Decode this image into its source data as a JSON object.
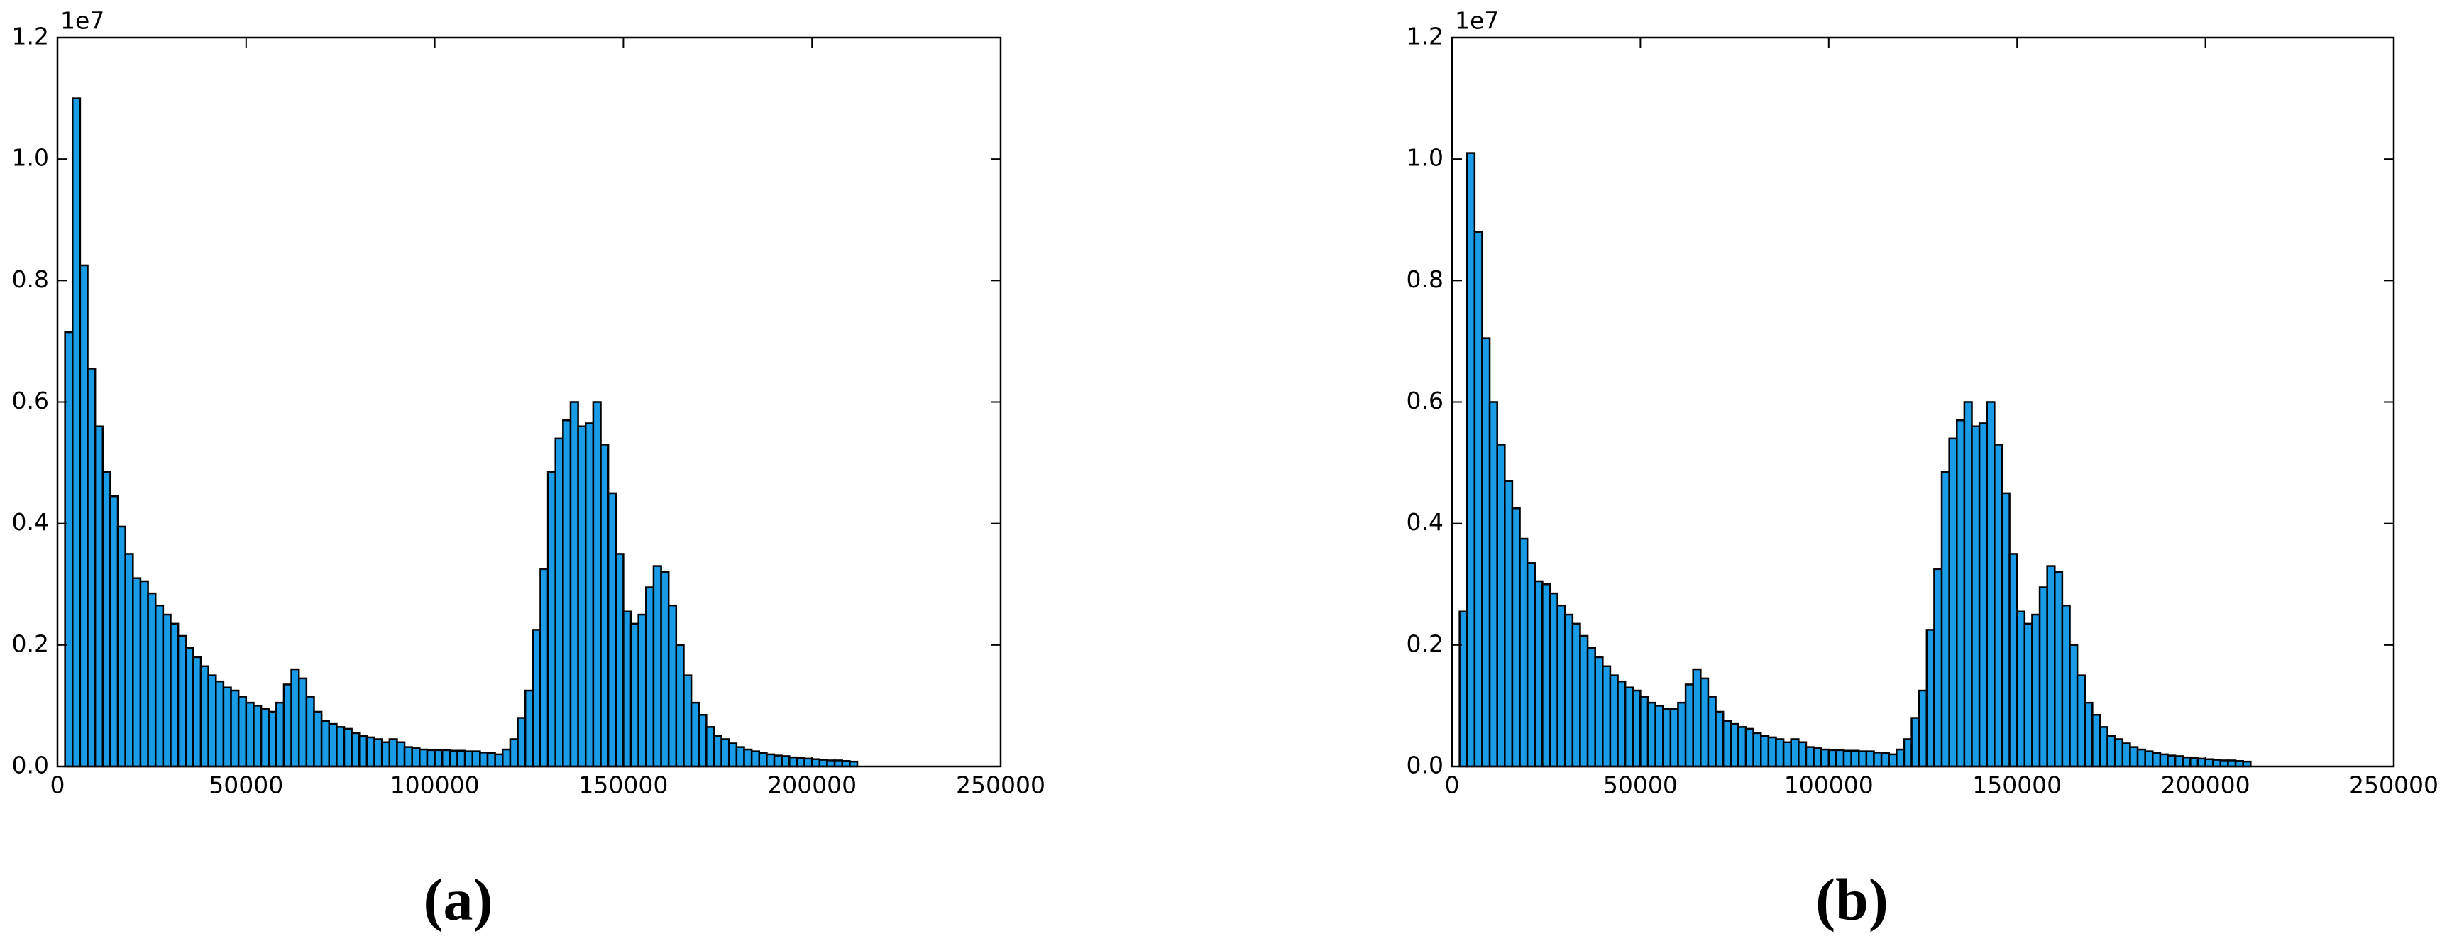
{
  "chart_data": [
    {
      "type": "histogram",
      "caption": "(a)",
      "offset_label": "1e7",
      "color": "#1a9be6",
      "edgecolor": "#000000",
      "bins": [
        2000,
        4000,
        6000,
        8000,
        10000,
        12000,
        14000,
        16000,
        18000,
        20000,
        22000,
        24000,
        26000,
        28000,
        30000,
        32000,
        34000,
        36000,
        38000,
        40000,
        42000,
        44000,
        46000,
        48000,
        50000,
        52000,
        54000,
        56000,
        58000,
        60000,
        62000,
        64000,
        66000,
        68000,
        70000,
        72000,
        74000,
        76000,
        78000,
        80000,
        82000,
        84000,
        86000,
        88000,
        90000,
        92000,
        94000,
        96000,
        98000,
        100000,
        102000,
        104000,
        106000,
        108000,
        110000,
        112000,
        114000,
        116000,
        118000,
        120000,
        122000,
        124000,
        126000,
        128000,
        130000,
        132000,
        134000,
        136000,
        138000,
        140000,
        142000,
        144000,
        146000,
        148000,
        150000,
        152000,
        154000,
        156000,
        158000,
        160000,
        162000,
        164000,
        166000,
        168000,
        170000,
        172000,
        174000,
        176000,
        178000,
        180000,
        182000,
        184000,
        186000,
        188000,
        190000,
        192000,
        194000,
        196000,
        198000,
        200000,
        202000,
        204000,
        206000,
        208000,
        210000,
        212000
      ],
      "values": [
        0.715,
        1.1,
        0.825,
        0.655,
        0.56,
        0.485,
        0.445,
        0.395,
        0.35,
        0.31,
        0.305,
        0.285,
        0.265,
        0.25,
        0.235,
        0.215,
        0.195,
        0.18,
        0.165,
        0.15,
        0.14,
        0.13,
        0.125,
        0.115,
        0.105,
        0.1,
        0.095,
        0.09,
        0.105,
        0.135,
        0.16,
        0.145,
        0.115,
        0.09,
        0.075,
        0.07,
        0.065,
        0.062,
        0.055,
        0.05,
        0.048,
        0.045,
        0.04,
        0.045,
        0.04,
        0.032,
        0.03,
        0.028,
        0.027,
        0.027,
        0.027,
        0.026,
        0.026,
        0.025,
        0.025,
        0.023,
        0.022,
        0.02,
        0.028,
        0.045,
        0.08,
        0.125,
        0.225,
        0.325,
        0.485,
        0.54,
        0.57,
        0.6,
        0.56,
        0.565,
        0.6,
        0.53,
        0.45,
        0.35,
        0.255,
        0.235,
        0.25,
        0.295,
        0.33,
        0.32,
        0.265,
        0.2,
        0.15,
        0.105,
        0.085,
        0.065,
        0.05,
        0.045,
        0.038,
        0.032,
        0.028,
        0.025,
        0.022,
        0.02,
        0.018,
        0.017,
        0.015,
        0.014,
        0.013,
        0.012,
        0.011,
        0.01,
        0.01,
        0.009,
        0.008
      ],
      "xlim": [
        0,
        250000
      ],
      "xticks": [
        0,
        50000,
        100000,
        150000,
        200000,
        250000
      ],
      "ylim": [
        0,
        1.2
      ],
      "yticks": [
        {
          "value": 0,
          "label": "0.0"
        },
        0.2,
        0.4,
        0.6,
        0.8,
        {
          "value": 1,
          "label": "1.0"
        },
        1.2
      ]
    },
    {
      "type": "histogram",
      "caption": "(b)",
      "offset_label": "1e7",
      "color": "#1a9be6",
      "edgecolor": "#000000",
      "bins": [
        2000,
        4000,
        6000,
        8000,
        10000,
        12000,
        14000,
        16000,
        18000,
        20000,
        22000,
        24000,
        26000,
        28000,
        30000,
        32000,
        34000,
        36000,
        38000,
        40000,
        42000,
        44000,
        46000,
        48000,
        50000,
        52000,
        54000,
        56000,
        58000,
        60000,
        62000,
        64000,
        66000,
        68000,
        70000,
        72000,
        74000,
        76000,
        78000,
        80000,
        82000,
        84000,
        86000,
        88000,
        90000,
        92000,
        94000,
        96000,
        98000,
        100000,
        102000,
        104000,
        106000,
        108000,
        110000,
        112000,
        114000,
        116000,
        118000,
        120000,
        122000,
        124000,
        126000,
        128000,
        130000,
        132000,
        134000,
        136000,
        138000,
        140000,
        142000,
        144000,
        146000,
        148000,
        150000,
        152000,
        154000,
        156000,
        158000,
        160000,
        162000,
        164000,
        166000,
        168000,
        170000,
        172000,
        174000,
        176000,
        178000,
        180000,
        182000,
        184000,
        186000,
        188000,
        190000,
        192000,
        194000,
        196000,
        198000,
        200000,
        202000,
        204000,
        206000,
        208000,
        210000,
        212000
      ],
      "values": [
        0.255,
        1.01,
        0.88,
        0.705,
        0.6,
        0.53,
        0.47,
        0.425,
        0.375,
        0.335,
        0.305,
        0.3,
        0.285,
        0.265,
        0.25,
        0.235,
        0.215,
        0.195,
        0.18,
        0.165,
        0.15,
        0.14,
        0.13,
        0.125,
        0.115,
        0.105,
        0.1,
        0.095,
        0.095,
        0.105,
        0.135,
        0.16,
        0.145,
        0.115,
        0.09,
        0.075,
        0.07,
        0.065,
        0.062,
        0.055,
        0.05,
        0.048,
        0.045,
        0.04,
        0.045,
        0.04,
        0.032,
        0.03,
        0.028,
        0.027,
        0.027,
        0.026,
        0.026,
        0.025,
        0.025,
        0.023,
        0.022,
        0.02,
        0.028,
        0.045,
        0.08,
        0.125,
        0.225,
        0.325,
        0.485,
        0.54,
        0.57,
        0.6,
        0.56,
        0.565,
        0.6,
        0.53,
        0.45,
        0.35,
        0.255,
        0.235,
        0.25,
        0.295,
        0.33,
        0.32,
        0.265,
        0.2,
        0.15,
        0.105,
        0.085,
        0.065,
        0.05,
        0.045,
        0.038,
        0.032,
        0.028,
        0.025,
        0.022,
        0.02,
        0.018,
        0.017,
        0.015,
        0.014,
        0.013,
        0.012,
        0.011,
        0.01,
        0.01,
        0.009,
        0.008
      ],
      "xlim": [
        0,
        250000
      ],
      "xticks": [
        0,
        50000,
        100000,
        150000,
        200000,
        250000
      ],
      "ylim": [
        0,
        1.2
      ],
      "yticks": [
        {
          "value": 0,
          "label": "0.0"
        },
        0.2,
        0.4,
        0.6,
        0.8,
        {
          "value": 1,
          "label": "1.0"
        },
        1.2
      ]
    }
  ]
}
